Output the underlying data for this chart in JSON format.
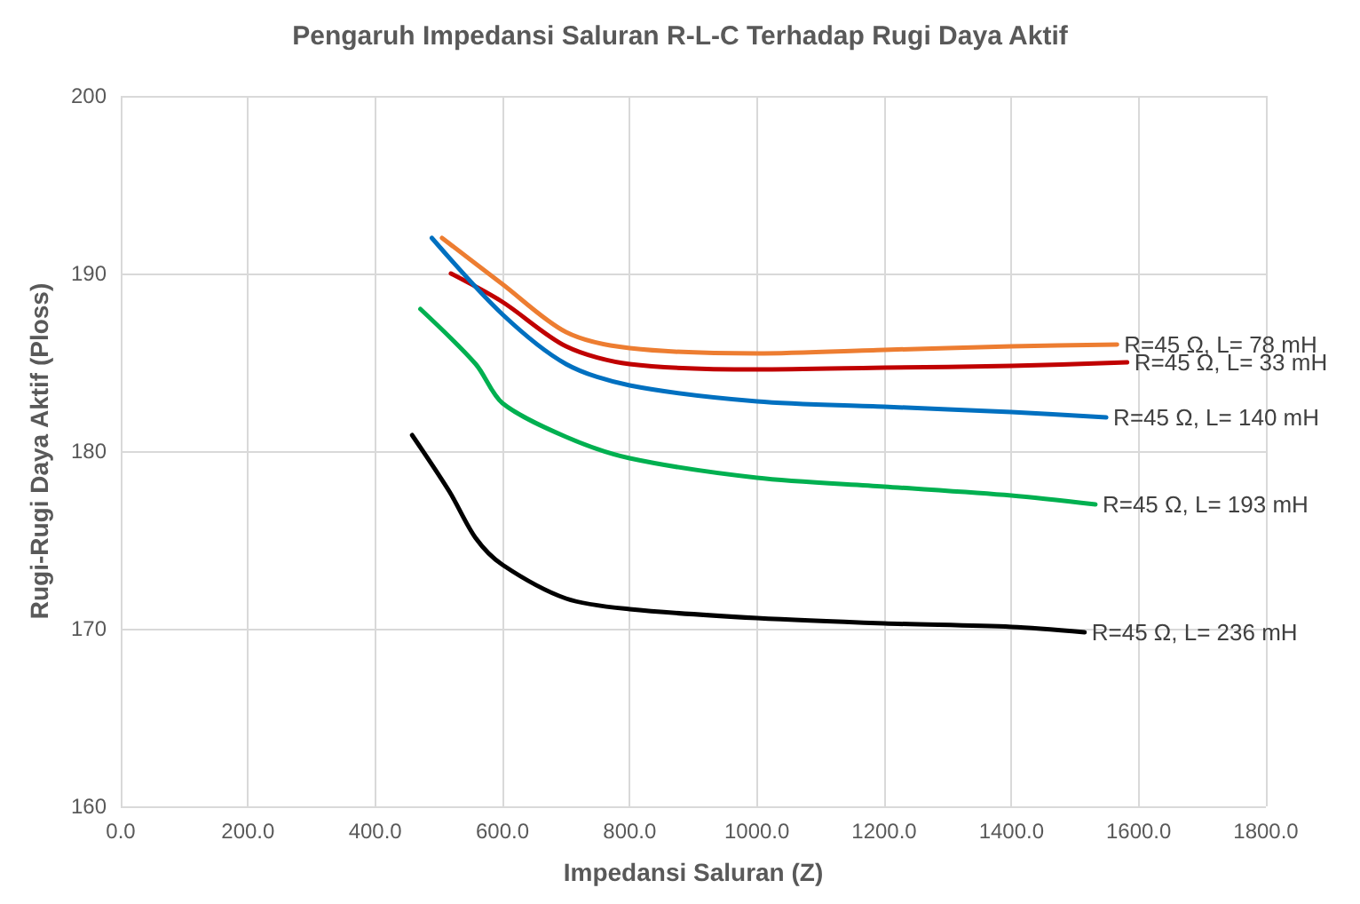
{
  "chart_data": {
    "type": "line",
    "title": "Pengaruh Impedansi Saluran R-L-C Terhadap Rugi Daya Aktif",
    "xlabel": "Impedansi Saluran (Z)",
    "ylabel": "Rugi-Rugi Daya Aktif (Ploss)",
    "xlim": [
      0,
      1800
    ],
    "xticks": [
      {
        "value": 0,
        "label": "0.0"
      },
      {
        "value": 200,
        "label": "200.0"
      },
      {
        "value": 400,
        "label": "400.0"
      },
      {
        "value": 600,
        "label": "600.0"
      },
      {
        "value": 800,
        "label": "800.0"
      },
      {
        "value": 1000,
        "label": "1000.0"
      },
      {
        "value": 1200,
        "label": "1200.0"
      },
      {
        "value": 1400,
        "label": "1400.0"
      },
      {
        "value": 1600,
        "label": "1600.0"
      },
      {
        "value": 1800,
        "label": "1800.0"
      }
    ],
    "ylim": [
      160,
      200
    ],
    "yticks": [
      160,
      170,
      180,
      190,
      200
    ],
    "grid": true,
    "legend": false,
    "marker": "none",
    "line_style": "solid",
    "series": [
      {
        "name": "R=45 Ω, L= 78 mH",
        "color": "#ed7d31",
        "x": [
          505,
          600,
          700,
          800,
          1000,
          1200,
          1400,
          1566
        ],
        "values": [
          192,
          189.4,
          186.7,
          185.8,
          185.5,
          185.7,
          185.9,
          186
        ]
      },
      {
        "name": "R=45 Ω, L= 33 mH",
        "color": "#c00000",
        "x": [
          519,
          600,
          700,
          800,
          1000,
          1200,
          1400,
          1582
        ],
        "values": [
          190,
          188.4,
          185.9,
          184.9,
          184.6,
          184.7,
          184.8,
          185
        ]
      },
      {
        "name": "R=45 Ω, L= 140 mH",
        "color": "#0070c0",
        "x": [
          489,
          600,
          700,
          800,
          1000,
          1200,
          1400,
          1549
        ],
        "values": [
          192,
          187.7,
          184.9,
          183.7,
          182.8,
          182.5,
          182.2,
          181.9
        ]
      },
      {
        "name": "R=45 Ω, L= 193 mH",
        "color": "#00b050",
        "x": [
          471,
          558,
          600,
          700,
          800,
          1000,
          1200,
          1400,
          1532
        ],
        "values": [
          188,
          184.9,
          182.7,
          180.8,
          179.6,
          178.5,
          178,
          177.5,
          177
        ]
      },
      {
        "name": "R=45 Ω, L= 236 mH",
        "color": "#000000",
        "x": [
          458,
          517,
          558,
          600,
          700,
          800,
          1000,
          1200,
          1400,
          1515
        ],
        "values": [
          180.9,
          177.7,
          175.1,
          173.6,
          171.7,
          171.1,
          170.6,
          170.3,
          170.1,
          169.8
        ]
      }
    ]
  }
}
